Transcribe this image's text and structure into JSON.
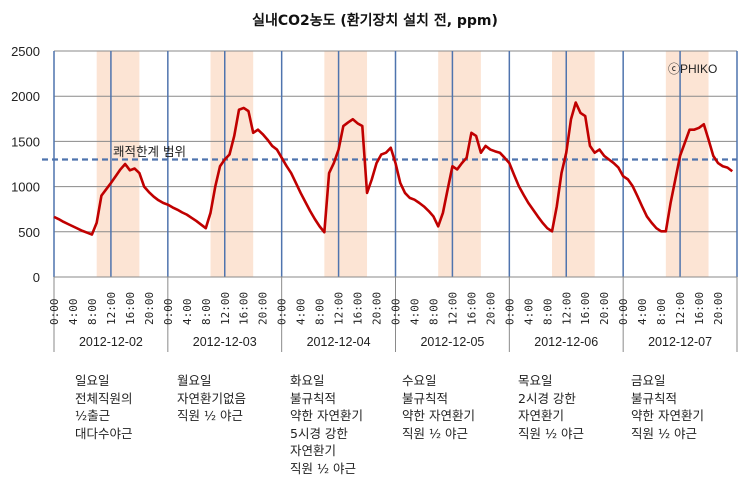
{
  "chart_data": {
    "type": "line",
    "title": "실내CO2농도 (환기장치 설치 전, ppm)",
    "xlabel": "",
    "ylabel": "",
    "ylim": [
      0,
      2500
    ],
    "yticks": [
      "0",
      "500",
      "1000",
      "1500",
      "2000",
      "2500"
    ],
    "hour_tick_labels": [
      "0:00",
      "4:00",
      "8:00",
      "12:00",
      "16:00",
      "20:00"
    ],
    "grid": true,
    "shaded_hours": [
      9,
      18
    ],
    "threshold": {
      "value": 1300,
      "label": "쾌적한계 범위"
    },
    "watermark": "ⓒPHIKO",
    "series_color": "#C00000",
    "threshold_color": "#4F74AE",
    "shade_color": "#FCE4D4",
    "days": [
      {
        "date": "2012-12-02",
        "note": [
          "일요일",
          "전체직원의",
          "½출근",
          "대다수야근"
        ],
        "hourly": [
          665,
          640,
          610,
          585,
          560,
          535,
          510,
          490,
          470,
          600,
          900,
          970,
          1040,
          1115,
          1190,
          1250,
          1180,
          1200,
          1150,
          1000,
          940,
          890,
          850,
          820
        ]
      },
      {
        "date": "2012-12-03",
        "note": [
          "월요일",
          "자연환기없음",
          "직원 ½ 야근"
        ],
        "hourly": [
          800,
          770,
          745,
          715,
          690,
          655,
          620,
          580,
          540,
          710,
          1000,
          1225,
          1300,
          1355,
          1560,
          1850,
          1870,
          1835,
          1595,
          1630,
          1580,
          1520,
          1450,
          1410
        ]
      },
      {
        "date": "2012-12-04",
        "note": [
          "화요일",
          "불규칙적",
          "약한 자연환기",
          "5시경 강한",
          "자연환기",
          "직원 ½ 야근"
        ],
        "hourly": [
          1320,
          1230,
          1150,
          1040,
          930,
          830,
          730,
          640,
          560,
          495,
          1150,
          1260,
          1410,
          1670,
          1710,
          1745,
          1700,
          1670,
          930,
          1080,
          1260,
          1355,
          1375,
          1430
        ]
      },
      {
        "date": "2012-12-05",
        "note": [
          "수요일",
          "불규칙적",
          "약한 자연환기",
          "직원 ½ 야근"
        ],
        "hourly": [
          1260,
          1040,
          930,
          875,
          855,
          820,
          780,
          730,
          670,
          560,
          710,
          970,
          1225,
          1190,
          1260,
          1320,
          1595,
          1560,
          1375,
          1450,
          1410,
          1390,
          1375,
          1320
        ]
      },
      {
        "date": "2012-12-06",
        "note": [
          "목요일",
          "2시경 강한",
          "자연환기",
          "직원 ½ 야근"
        ],
        "hourly": [
          1260,
          1130,
          1005,
          910,
          820,
          745,
          670,
          600,
          540,
          505,
          780,
          1150,
          1375,
          1745,
          1930,
          1815,
          1780,
          1450,
          1375,
          1410,
          1340,
          1300,
          1260,
          1210
        ]
      },
      {
        "date": "2012-12-07",
        "note": [
          "금요일",
          "불규칙적",
          "약한 자연환기",
          "직원 ½ 야근"
        ],
        "hourly": [
          1115,
          1080,
          1005,
          895,
          780,
          670,
          600,
          540,
          505,
          505,
          820,
          1080,
          1340,
          1485,
          1630,
          1630,
          1650,
          1690,
          1520,
          1340,
          1260,
          1225,
          1210,
          1170
        ]
      }
    ]
  }
}
